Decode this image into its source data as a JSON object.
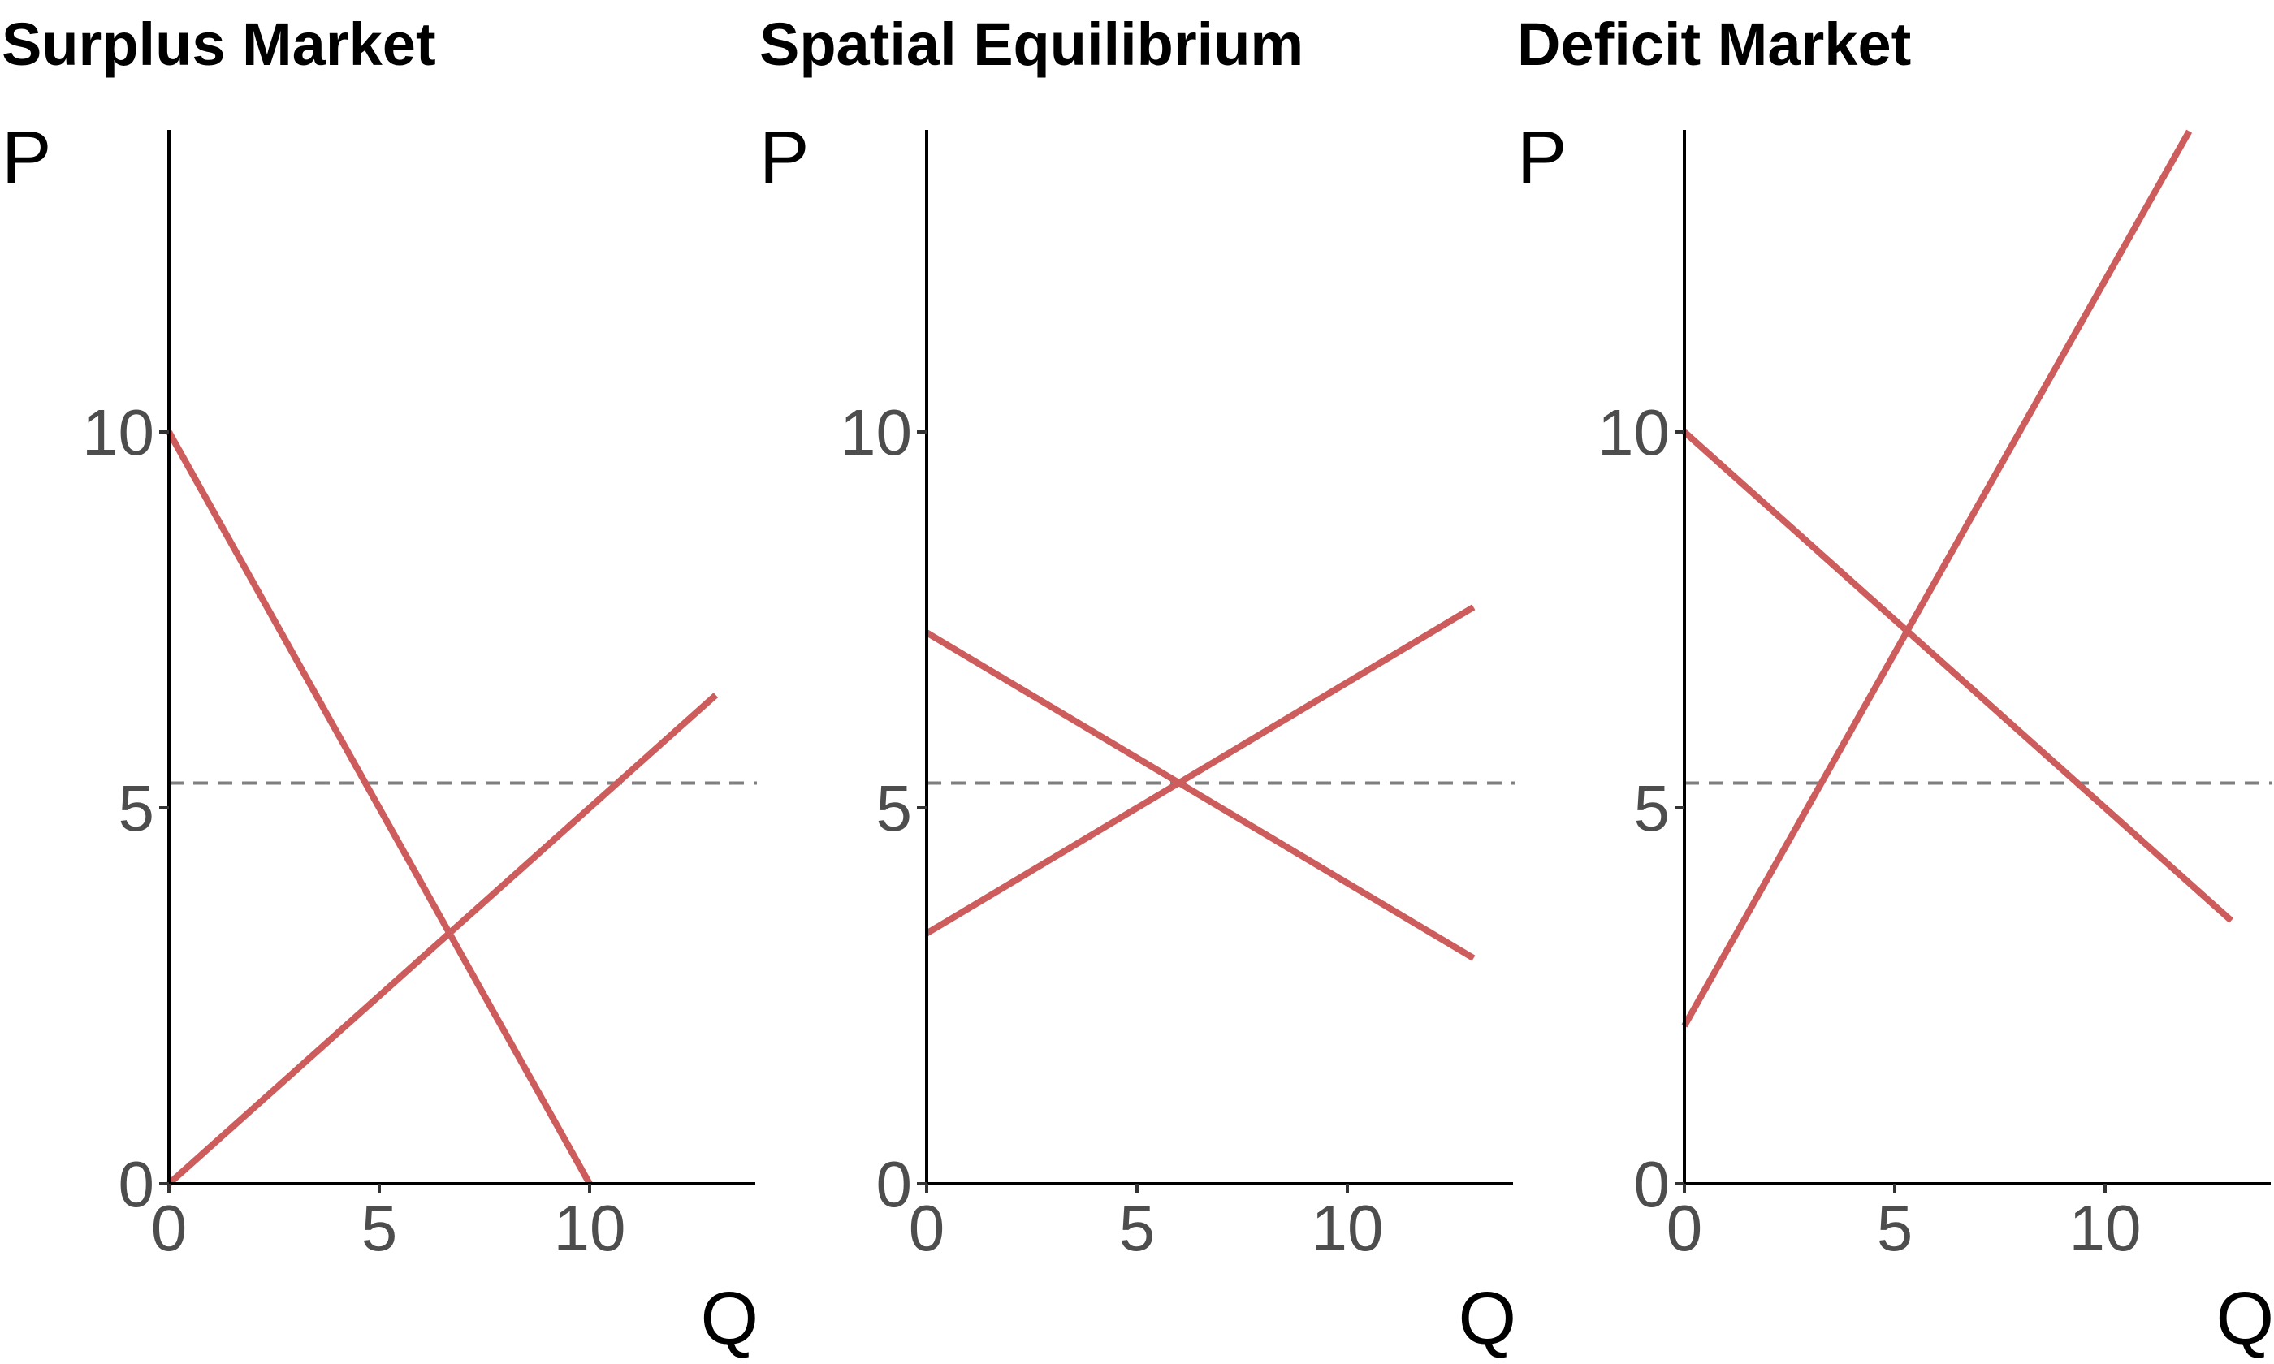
{
  "chart_data": [
    {
      "type": "line",
      "title": "Surplus Market",
      "xlabel": "Q",
      "ylabel": "P",
      "xlim": [
        0,
        14
      ],
      "ylim": [
        0,
        14
      ],
      "x_ticks": [
        0,
        5,
        10
      ],
      "y_ticks": [
        0,
        5,
        10
      ],
      "grid": false,
      "reference_line": {
        "orientation": "horizontal",
        "y": 5.33,
        "style": "dashed",
        "color": "#7f7f7f"
      },
      "series": [
        {
          "points": [
            [
              0,
              10
            ],
            [
              10,
              0
            ]
          ],
          "color": "#cd5c5c"
        },
        {
          "points": [
            [
              0,
              0
            ],
            [
              13,
              6.5
            ]
          ],
          "color": "#cd5c5c"
        }
      ]
    },
    {
      "type": "line",
      "title": "Spatial Equilibrium",
      "xlabel": "Q",
      "ylabel": "P",
      "xlim": [
        0,
        14
      ],
      "ylim": [
        0,
        14
      ],
      "x_ticks": [
        0,
        5,
        10
      ],
      "y_ticks": [
        0,
        5,
        10
      ],
      "grid": false,
      "reference_line": {
        "orientation": "horizontal",
        "y": 5.33,
        "style": "dashed",
        "color": "#7f7f7f"
      },
      "series": [
        {
          "points": [
            [
              0,
              7.33
            ],
            [
              13,
              3
            ]
          ],
          "color": "#cd5c5c"
        },
        {
          "points": [
            [
              0,
              3.33
            ],
            [
              13,
              7.67
            ]
          ],
          "color": "#cd5c5c"
        }
      ]
    },
    {
      "type": "line",
      "title": "Deficit Market",
      "xlabel": "Q",
      "ylabel": "P",
      "xlim": [
        0,
        14
      ],
      "ylim": [
        0,
        14
      ],
      "x_ticks": [
        0,
        5,
        10
      ],
      "y_ticks": [
        0,
        5,
        10
      ],
      "grid": false,
      "reference_line": {
        "orientation": "horizontal",
        "y": 5.33,
        "style": "dashed",
        "color": "#7f7f7f"
      },
      "series": [
        {
          "points": [
            [
              0,
              10
            ],
            [
              13,
              3.5
            ]
          ],
          "color": "#cd5c5c"
        },
        {
          "points": [
            [
              0,
              2.1
            ],
            [
              12,
              14
            ]
          ],
          "color": "#cd5c5c"
        }
      ]
    }
  ]
}
